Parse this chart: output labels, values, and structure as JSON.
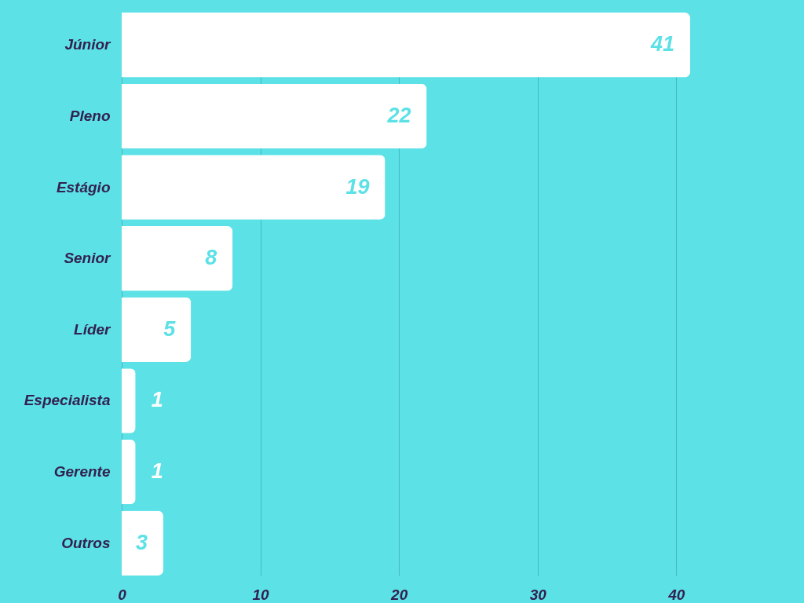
{
  "chart_data": {
    "type": "bar",
    "orientation": "horizontal",
    "categories": [
      "Júnior",
      "Pleno",
      "Estágio",
      "Senior",
      "Líder",
      "Especialista",
      "Gerente",
      "Outros"
    ],
    "values": [
      41,
      22,
      19,
      8,
      5,
      1,
      1,
      3
    ],
    "color": "#ffffff",
    "xlim": [
      0,
      41
    ],
    "xticks": [
      0,
      10,
      20,
      30,
      40
    ],
    "grid": "x",
    "data_labels": true
  }
}
